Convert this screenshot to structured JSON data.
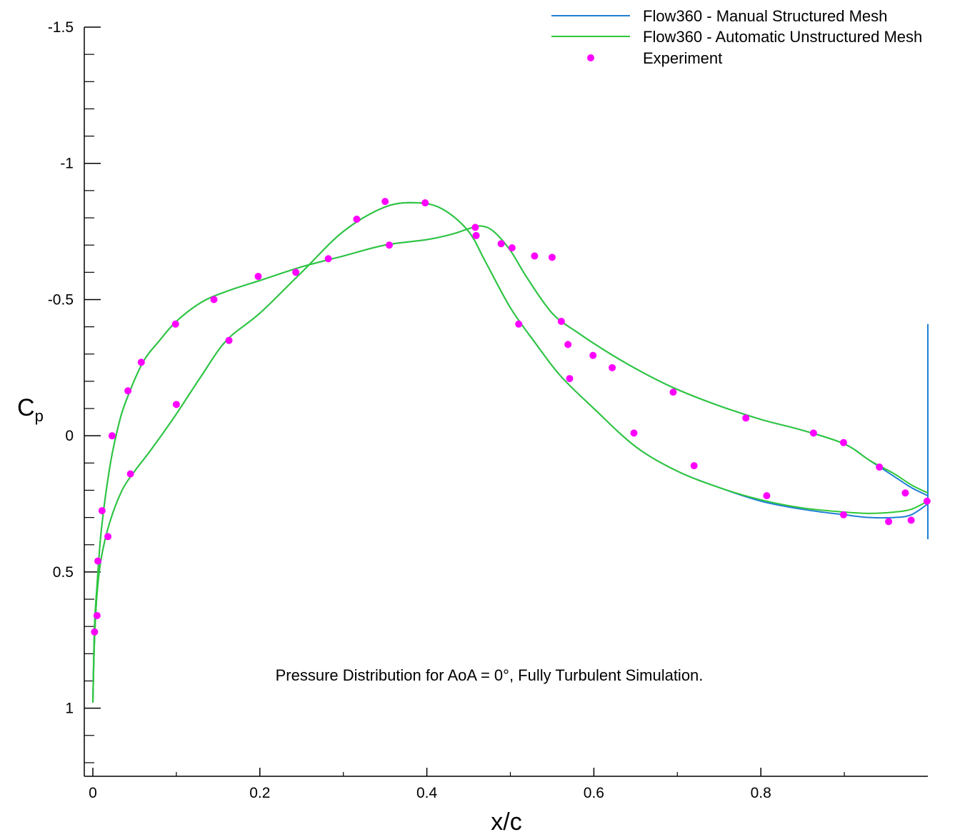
{
  "chart_data": {
    "type": "line",
    "title": "",
    "xlabel": "x/c",
    "ylabel": "C",
    "ylabel_sub": "p",
    "xlim": [
      0,
      1
    ],
    "ylim": [
      1.25,
      -1.5
    ],
    "y_inverted": true,
    "x_ticks": [
      0,
      0.2,
      0.4,
      0.6,
      0.8
    ],
    "x_tick_labels": [
      "0",
      "0.2",
      "0.4",
      "0.6",
      "0.8"
    ],
    "y_ticks": [
      -1.5,
      -1,
      -0.5,
      0,
      0.5,
      1
    ],
    "y_tick_labels": [
      "-1.5",
      "-1",
      "-0.5",
      "0",
      "0.5",
      "1"
    ],
    "annotation": "Pressure Distribution for AoA = 0°, Fully Turbulent Simulation.",
    "legend_position": "top-right",
    "series": [
      {
        "name": "Flow360 - Manual Structured Mesh",
        "style": "line",
        "color": "#1f7fd6",
        "curves": [
          {
            "x": [
              0.0,
              0.002,
              0.005,
              0.01,
              0.02,
              0.035,
              0.05,
              0.07,
              0.1,
              0.13,
              0.16,
              0.2,
              0.25,
              0.3,
              0.35,
              0.39,
              0.42,
              0.45,
              0.47,
              0.5,
              0.53,
              0.56,
              0.6,
              0.65,
              0.7,
              0.75,
              0.8,
              0.85,
              0.9,
              0.93,
              0.96,
              0.98,
              1.0
            ],
            "y": [
              0.97,
              0.75,
              0.58,
              0.45,
              0.32,
              0.2,
              0.13,
              0.05,
              -0.08,
              -0.22,
              -0.35,
              -0.45,
              -0.6,
              -0.75,
              -0.84,
              -0.855,
              -0.83,
              -0.75,
              -0.64,
              -0.47,
              -0.34,
              -0.22,
              -0.1,
              0.04,
              0.13,
              0.19,
              0.24,
              0.27,
              0.29,
              0.3,
              0.3,
              0.29,
              0.25
            ]
          },
          {
            "x": [
              0.0,
              0.002,
              0.005,
              0.01,
              0.02,
              0.03,
              0.04,
              0.06,
              0.08,
              0.1,
              0.13,
              0.16,
              0.2,
              0.25,
              0.3,
              0.35,
              0.4,
              0.43,
              0.45,
              0.465,
              0.48,
              0.5,
              0.52,
              0.55,
              0.58,
              0.62,
              0.66,
              0.7,
              0.75,
              0.8,
              0.85,
              0.9,
              0.93,
              0.96,
              0.98,
              1.0
            ],
            "y": [
              0.97,
              0.7,
              0.55,
              0.35,
              0.12,
              -0.03,
              -0.13,
              -0.27,
              -0.35,
              -0.42,
              -0.49,
              -0.53,
              -0.57,
              -0.62,
              -0.66,
              -0.7,
              -0.72,
              -0.74,
              -0.76,
              -0.77,
              -0.75,
              -0.68,
              -0.58,
              -0.45,
              -0.38,
              -0.3,
              -0.23,
              -0.17,
              -0.11,
              -0.06,
              -0.02,
              0.03,
              0.09,
              0.15,
              0.19,
              0.22
            ]
          },
          {
            "x": [
              1.0,
              1.0
            ],
            "y": [
              -0.41,
              0.38
            ]
          }
        ]
      },
      {
        "name": "Flow360 - Automatic Unstructured Mesh",
        "style": "line",
        "color": "#2ec839",
        "curves": [
          {
            "x": [
              0.0,
              0.002,
              0.005,
              0.01,
              0.02,
              0.035,
              0.05,
              0.07,
              0.1,
              0.13,
              0.16,
              0.2,
              0.25,
              0.3,
              0.35,
              0.39,
              0.42,
              0.45,
              0.47,
              0.5,
              0.53,
              0.56,
              0.6,
              0.65,
              0.7,
              0.75,
              0.8,
              0.85,
              0.9,
              0.93,
              0.96,
              0.98,
              1.0
            ],
            "y": [
              0.98,
              0.75,
              0.58,
              0.45,
              0.32,
              0.2,
              0.13,
              0.05,
              -0.08,
              -0.22,
              -0.35,
              -0.45,
              -0.6,
              -0.75,
              -0.84,
              -0.855,
              -0.83,
              -0.75,
              -0.64,
              -0.47,
              -0.34,
              -0.22,
              -0.1,
              0.04,
              0.13,
              0.19,
              0.235,
              0.265,
              0.28,
              0.285,
              0.28,
              0.27,
              0.24
            ]
          },
          {
            "x": [
              0.0,
              0.002,
              0.005,
              0.01,
              0.02,
              0.03,
              0.04,
              0.06,
              0.08,
              0.1,
              0.13,
              0.16,
              0.2,
              0.25,
              0.3,
              0.35,
              0.4,
              0.43,
              0.45,
              0.465,
              0.48,
              0.5,
              0.52,
              0.55,
              0.58,
              0.62,
              0.66,
              0.7,
              0.75,
              0.8,
              0.85,
              0.9,
              0.93,
              0.96,
              0.98,
              1.0
            ],
            "y": [
              0.98,
              0.7,
              0.55,
              0.35,
              0.12,
              -0.03,
              -0.13,
              -0.27,
              -0.35,
              -0.42,
              -0.49,
              -0.53,
              -0.57,
              -0.62,
              -0.66,
              -0.7,
              -0.72,
              -0.74,
              -0.76,
              -0.77,
              -0.75,
              -0.68,
              -0.58,
              -0.45,
              -0.38,
              -0.3,
              -0.23,
              -0.17,
              -0.11,
              -0.06,
              -0.02,
              0.03,
              0.09,
              0.14,
              0.18,
              0.21
            ]
          }
        ]
      },
      {
        "name": "Experiment",
        "style": "scatter",
        "color": "#ff00ff",
        "x": [
          0.002,
          0.005,
          0.006,
          0.011,
          0.018,
          0.023,
          0.042,
          0.045,
          0.058,
          0.099,
          0.1,
          0.145,
          0.163,
          0.198,
          0.243,
          0.282,
          0.316,
          0.35,
          0.355,
          0.398,
          0.458,
          0.459,
          0.489,
          0.502,
          0.51,
          0.529,
          0.55,
          0.561,
          0.569,
          0.571,
          0.599,
          0.622,
          0.648,
          0.695,
          0.72,
          0.782,
          0.807,
          0.863,
          0.899,
          0.899,
          0.942,
          0.953,
          0.973,
          0.98,
          0.999
        ],
        "y": [
          0.72,
          0.66,
          0.46,
          0.275,
          0.37,
          0.0,
          -0.165,
          0.14,
          -0.27,
          -0.41,
          -0.115,
          -0.5,
          -0.35,
          -0.585,
          -0.6,
          -0.65,
          -0.795,
          -0.86,
          -0.7,
          -0.855,
          -0.765,
          -0.735,
          -0.705,
          -0.69,
          -0.41,
          -0.66,
          -0.655,
          -0.42,
          -0.335,
          -0.21,
          -0.295,
          -0.25,
          -0.01,
          -0.16,
          0.11,
          -0.065,
          0.22,
          -0.01,
          0.025,
          0.29,
          0.115,
          0.315,
          0.21,
          0.31,
          0.24
        ]
      }
    ]
  }
}
